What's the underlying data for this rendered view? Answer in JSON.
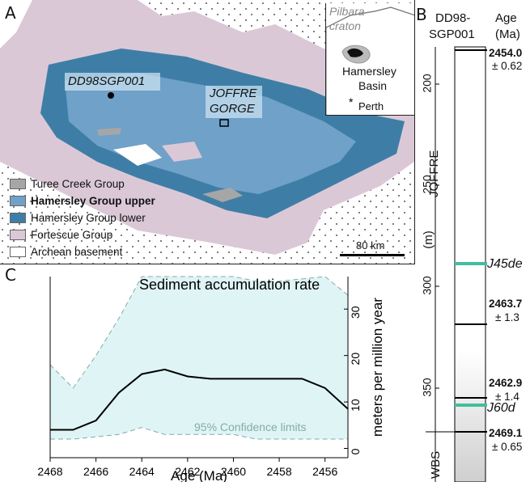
{
  "panel_a": {
    "letter": "A",
    "site_label": "DD98SGP001",
    "gorge_label_1": "JOFFRE",
    "gorge_label_2": "GORGE",
    "scale_label": "80 km",
    "inset": {
      "craton_1": "Pilbara",
      "craton_2": "craton",
      "basin_1": "Hamersley",
      "basin_2": "Basin",
      "city": "Perth"
    },
    "legend": [
      {
        "label": "Turee Creek Group",
        "color": "#a6a6a6",
        "bold": false
      },
      {
        "label": "Hamersley Group upper",
        "color": "#6fa1c9",
        "bold": true
      },
      {
        "label": "Hamersley Group lower",
        "color": "#3e7ea6",
        "bold": false
      },
      {
        "label": "Fortescue Group",
        "color": "#dbc8d7",
        "bold": false
      },
      {
        "label": "Archean basement",
        "color": "#ffffff",
        "bold": false
      }
    ]
  },
  "panel_b": {
    "letter": "B",
    "col_header_1": "DD98-",
    "col_header_2": "SGP001",
    "age_header_1": "Age",
    "age_header_2": "(Ma)",
    "axis_label": "(m)",
    "ticks": [
      "200",
      "250",
      "300",
      "350"
    ],
    "formation_1": "JOFFRE",
    "formation_2": "WBS",
    "ages": [
      {
        "value": "2454.0",
        "err": "± 0.62"
      },
      {
        "value": "2463.7",
        "err": "± 1.3"
      },
      {
        "value": "2462.9",
        "err": "± 1.4"
      },
      {
        "value": "2469.1",
        "err": "± 0.65"
      }
    ],
    "markers": [
      "J45de",
      "J60d"
    ],
    "marker_color": "#3fbf9f"
  },
  "panel_c": {
    "letter": "C",
    "chart_data": {
      "type": "line",
      "title": "Sediment accumulation rate",
      "xlabel": "Age (Ma)",
      "ylabel": "meters per million year",
      "xlim": [
        2468,
        2455
      ],
      "ylim": [
        -2,
        37
      ],
      "xticks": [
        2468,
        2466,
        2464,
        2462,
        2460,
        2458,
        2456
      ],
      "yticks": [
        0,
        10,
        20,
        30
      ],
      "series": [
        {
          "type": "line",
          "x": [
            2468,
            2467,
            2466,
            2465,
            2464,
            2463,
            2462,
            2461,
            2460,
            2459,
            2458,
            2457,
            2456,
            2455
          ],
          "y": [
            4,
            4,
            6,
            12,
            16,
            17,
            15.5,
            15,
            15,
            15,
            15,
            15,
            13,
            8.5
          ]
        }
      ],
      "band": {
        "name": "95% Confidence limits",
        "x": [
          2468,
          2467,
          2466,
          2465,
          2464,
          2463,
          2462,
          2461,
          2460,
          2459,
          2458,
          2457,
          2456,
          2455
        ],
        "upper": [
          18,
          13,
          20,
          28,
          37,
          37,
          37,
          37,
          37,
          36,
          36,
          36.5,
          37,
          33
        ],
        "lower": [
          2,
          2,
          2.5,
          3,
          4.5,
          3,
          3,
          3,
          3,
          2,
          2,
          2,
          2,
          2
        ]
      },
      "band_color": "#dff4f4"
    }
  }
}
